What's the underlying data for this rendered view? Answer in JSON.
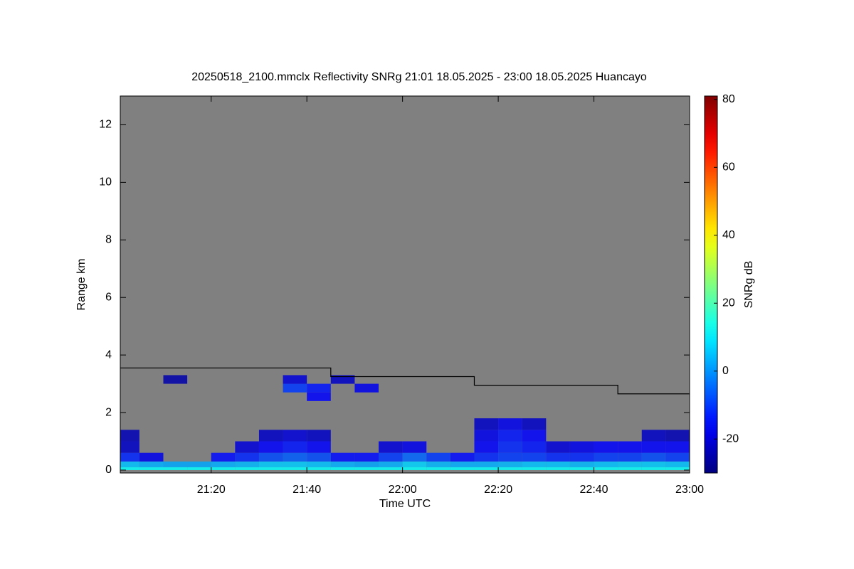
{
  "chart_data": {
    "type": "heatmap",
    "title": "20250518_2100.mmclx Reflectivity SNRg   21:01 18.05.2025 - 23:00 18.05.2025 Huancayo",
    "xlabel": "Time UTC",
    "ylabel": "Range km",
    "colorbar_label": "SNRg dB",
    "background": "#808080",
    "colormap": "jet",
    "xlim": [
      1261,
      1380
    ],
    "xticks": [
      {
        "value": 1280,
        "label": "21:20"
      },
      {
        "value": 1300,
        "label": "21:40"
      },
      {
        "value": 1320,
        "label": "22:00"
      },
      {
        "value": 1340,
        "label": "22:20"
      },
      {
        "value": 1360,
        "label": "22:40"
      },
      {
        "value": 1380,
        "label": "23:00"
      }
    ],
    "ylim": [
      -0.1,
      13
    ],
    "yticks": [
      0,
      2,
      4,
      6,
      8,
      10,
      12
    ],
    "clim": [
      -30,
      81
    ],
    "cticks": [
      -20,
      0,
      20,
      40,
      60,
      80
    ],
    "x_edges": [
      1260,
      1265,
      1270,
      1275,
      1280,
      1285,
      1290,
      1295,
      1300,
      1305,
      1310,
      1315,
      1320,
      1325,
      1330,
      1335,
      1340,
      1345,
      1350,
      1355,
      1360,
      1365,
      1370,
      1375,
      1380
    ],
    "y_edges": [
      0,
      0.1,
      0.3,
      0.6,
      1.0,
      1.4,
      1.8,
      2.4,
      2.7,
      3.0,
      3.3
    ],
    "z": [
      [
        12,
        12,
        12,
        12,
        12,
        12,
        12,
        12,
        12,
        12,
        12,
        12,
        12,
        12,
        12,
        12,
        12,
        12,
        12,
        12,
        12,
        12,
        12,
        12
      ],
      [
        5,
        3,
        2,
        2,
        3,
        4,
        6,
        6,
        5,
        3,
        2,
        3,
        7,
        4,
        3,
        3,
        4,
        5,
        5,
        4,
        5,
        6,
        6,
        5
      ],
      [
        -12,
        -18,
        null,
        null,
        -15,
        -12,
        -8,
        -6,
        -8,
        -15,
        -15,
        -10,
        -5,
        -10,
        -15,
        -12,
        -10,
        -10,
        -12,
        -12,
        -10,
        -10,
        -8,
        -10
      ],
      [
        -22,
        null,
        null,
        null,
        null,
        -20,
        -16,
        -14,
        -16,
        null,
        null,
        -20,
        -18,
        null,
        null,
        -16,
        -12,
        -14,
        -20,
        -18,
        -16,
        -16,
        -16,
        -16
      ],
      [
        -24,
        null,
        null,
        null,
        null,
        null,
        -22,
        -20,
        -22,
        null,
        null,
        null,
        null,
        null,
        null,
        -18,
        -14,
        -16,
        null,
        null,
        null,
        null,
        -22,
        -24
      ],
      [
        null,
        null,
        null,
        null,
        null,
        null,
        null,
        null,
        null,
        null,
        null,
        null,
        null,
        null,
        null,
        -22,
        -18,
        -22,
        null,
        null,
        null,
        null,
        null,
        null
      ],
      [
        null,
        null,
        null,
        null,
        null,
        null,
        null,
        null,
        null,
        null,
        null,
        null,
        null,
        null,
        null,
        null,
        null,
        null,
        null,
        null,
        null,
        null,
        null,
        null
      ],
      [
        null,
        null,
        null,
        null,
        null,
        null,
        null,
        null,
        -16,
        null,
        null,
        null,
        null,
        null,
        null,
        null,
        null,
        null,
        null,
        null,
        null,
        null,
        null,
        null
      ],
      [
        null,
        null,
        null,
        null,
        null,
        null,
        null,
        -10,
        -14,
        null,
        -18,
        null,
        null,
        null,
        null,
        null,
        null,
        null,
        null,
        null,
        null,
        null,
        null,
        null
      ],
      [
        null,
        null,
        -25,
        null,
        null,
        null,
        null,
        -20,
        null,
        -22,
        null,
        null,
        null,
        null,
        null,
        null,
        null,
        null,
        null,
        null,
        null,
        null,
        null,
        null
      ]
    ],
    "line": {
      "color": "#000000",
      "x": [
        1261,
        1305,
        1305,
        1335,
        1335,
        1365,
        1365,
        1380
      ],
      "y": [
        3.55,
        3.55,
        3.25,
        3.25,
        2.95,
        2.95,
        2.65,
        2.65
      ]
    }
  }
}
